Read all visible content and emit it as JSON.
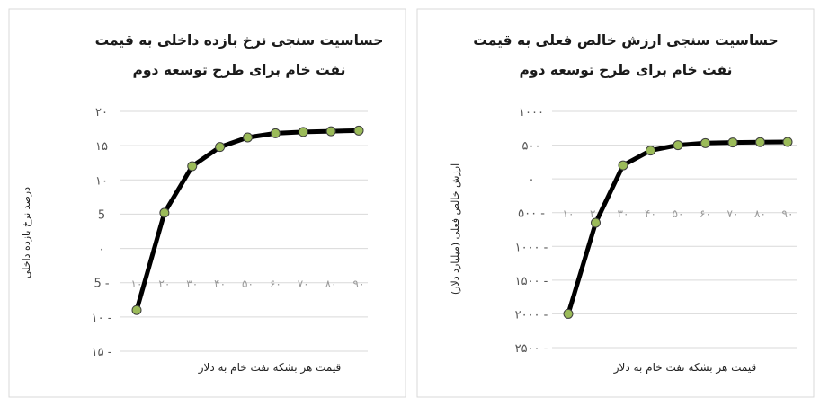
{
  "chart_data": [
    {
      "type": "line",
      "title": "حساسیت سنجی نرخ بازده داخلی به قیمت نفت خام  برای طرح توسعه دوم",
      "title_lines": [
        "حساسیت سنجی نرخ بازده داخلی به قیمت",
        "نفت خام  برای طرح توسعه دوم"
      ],
      "xlabel": "قیمت هر بشکه نفت خام به دلار",
      "ylabel": "درصد نرخ بازده داخلی",
      "ylim": [
        -15,
        20
      ],
      "yticks": [
        20,
        15,
        10,
        5,
        0,
        -5,
        -10,
        -15
      ],
      "ytick_labels": [
        "۲۰",
        "۱۵",
        "۱۰",
        "5",
        "۰",
        "5 -",
        "۱۰ -",
        "۱۵ -"
      ],
      "categories": [
        "۱۰",
        "۲۰",
        "۳۰",
        "۴۰",
        "۵۰",
        "۶۰",
        "۷۰",
        "۸۰",
        "۹۰"
      ],
      "series": [
        {
          "values": [
            -9,
            5.2,
            12,
            14.8,
            16.2,
            16.8,
            17,
            17.1,
            17.2
          ]
        }
      ],
      "line_color": "#000000",
      "marker_color": "#9bbb59",
      "grid": true
    },
    {
      "type": "line",
      "title": "حساسیت سنجی ارزش خالص فعلی به قیمت نفت خام برای طرح توسعه دوم",
      "title_lines": [
        "حساسیت سنجی ارزش خالص فعلی به قیمت",
        "نفت خام برای طرح توسعه دوم"
      ],
      "xlabel": "قیمت هر بشکه نفت خام به دلار",
      "ylabel": "ارزش خالص فعلی (میلیارد دلار)",
      "ylim": [
        -2500,
        1000
      ],
      "yticks": [
        1000,
        500,
        0,
        -500,
        -1000,
        -1500,
        -2000,
        -2500
      ],
      "ytick_labels": [
        "۱۰۰۰",
        "۵۰۰",
        "۰",
        "۵۰۰ -",
        "۱۰۰۰ -",
        "۱۵۰۰ -",
        "۲۰۰۰ -",
        "۲۵۰۰ -"
      ],
      "categories": [
        "۱۰",
        "۲۰",
        "۳۰",
        "۴۰",
        "۵۰",
        "۶۰",
        "۷۰",
        "۸۰",
        "۹۰"
      ],
      "series": [
        {
          "values": [
            -2000,
            -650,
            200,
            420,
            500,
            530,
            540,
            545,
            548
          ]
        }
      ],
      "line_color": "#000000",
      "marker_color": "#9bbb59",
      "grid": true
    }
  ]
}
